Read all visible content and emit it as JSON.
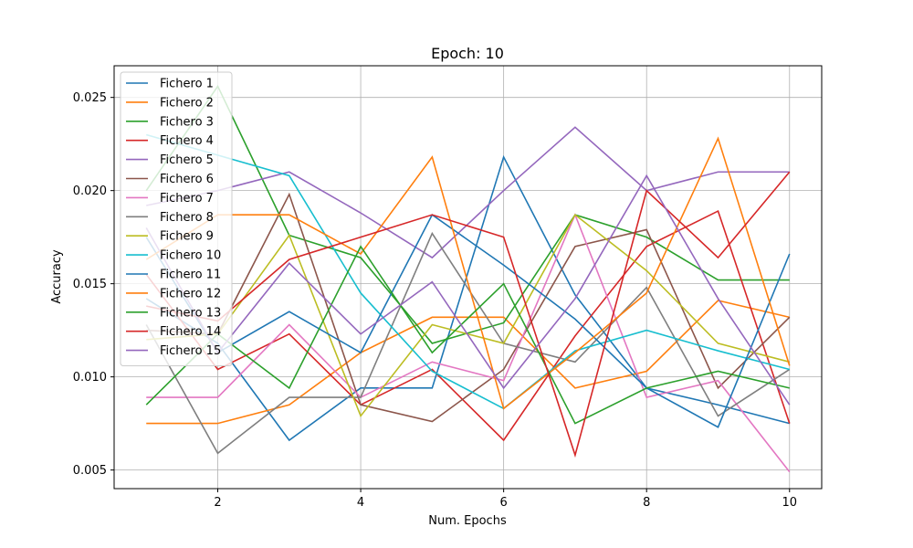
{
  "chart_data": {
    "type": "line",
    "title": "Epoch: 10",
    "xlabel": "Num. Epochs",
    "ylabel": "Accuracy",
    "xlim": [
      0.55,
      10.45
    ],
    "ylim": [
      0.004,
      0.0267
    ],
    "xticks": [
      2,
      4,
      6,
      8,
      10
    ],
    "yticks": [
      0.005,
      0.01,
      0.015,
      0.02,
      0.025
    ],
    "ytick_labels": [
      "0.005",
      "0.010",
      "0.015",
      "0.020",
      "0.025"
    ],
    "grid": true,
    "legend_position": "top-left",
    "x": [
      1,
      2,
      3,
      4,
      5,
      6,
      7,
      8,
      9,
      10
    ],
    "series": [
      {
        "name": "Fichero 1",
        "color": "#1f77b4",
        "values": [
          0.0142,
          0.0118,
          0.0066,
          0.0094,
          0.0094,
          0.0218,
          0.0144,
          0.0094,
          0.0085,
          0.0075
        ]
      },
      {
        "name": "Fichero 2",
        "color": "#ff7f0e",
        "values": [
          0.0075,
          0.0075,
          0.0085,
          0.0113,
          0.0132,
          0.0132,
          0.0094,
          0.0103,
          0.0141,
          0.0132
        ]
      },
      {
        "name": "Fichero 3",
        "color": "#2ca02c",
        "values": [
          0.02,
          0.0256,
          0.0176,
          0.0164,
          0.0118,
          0.0129,
          0.0187,
          0.0175,
          0.0152,
          0.0152
        ]
      },
      {
        "name": "Fichero 4",
        "color": "#d62728",
        "values": [
          0.0155,
          0.0104,
          0.0123,
          0.0085,
          0.0104,
          0.0066,
          0.0122,
          0.017,
          0.0189,
          0.0075
        ]
      },
      {
        "name": "Fichero 5",
        "color": "#9467bd",
        "values": [
          0.0192,
          0.02,
          0.021,
          0.0188,
          0.0164,
          0.02,
          0.0234,
          0.02,
          0.021,
          0.021
        ]
      },
      {
        "name": "Fichero 6",
        "color": "#8c564b",
        "values": [
          0.0125,
          0.0123,
          0.0198,
          0.0085,
          0.0076,
          0.0104,
          0.017,
          0.0179,
          0.0094,
          0.0132
        ]
      },
      {
        "name": "Fichero 7",
        "color": "#e377c2",
        "values": [
          0.0089,
          0.0089,
          0.0128,
          0.0089,
          0.0108,
          0.0098,
          0.0187,
          0.0089,
          0.0098,
          0.0049
        ]
      },
      {
        "name": "Fichero 8",
        "color": "#7f7f7f",
        "values": [
          0.0128,
          0.0059,
          0.0089,
          0.0089,
          0.0177,
          0.0118,
          0.0108,
          0.0148,
          0.0079,
          0.0104
        ]
      },
      {
        "name": "Fichero 9",
        "color": "#bcbd22",
        "values": [
          0.012,
          0.0123,
          0.0176,
          0.0079,
          0.0128,
          0.0118,
          0.0187,
          0.0157,
          0.0118,
          0.0108
        ]
      },
      {
        "name": "Fichero 10",
        "color": "#17becf",
        "values": [
          0.023,
          0.0219,
          0.0208,
          0.0145,
          0.0103,
          0.0083,
          0.0114,
          0.0125,
          0.0114,
          0.0104
        ]
      },
      {
        "name": "Fichero 11",
        "color": "#1f77b4",
        "values": [
          0.0175,
          0.0113,
          0.0135,
          0.0113,
          0.0187,
          0.016,
          0.0131,
          0.0094,
          0.0073,
          0.0166
        ]
      },
      {
        "name": "Fichero 12",
        "color": "#ff7f0e",
        "values": [
          0.0163,
          0.0187,
          0.0187,
          0.0166,
          0.0218,
          0.0083,
          0.0113,
          0.0145,
          0.0228,
          0.0106
        ]
      },
      {
        "name": "Fichero 13",
        "color": "#2ca02c",
        "values": [
          0.0085,
          0.0123,
          0.0094,
          0.017,
          0.0113,
          0.015,
          0.0075,
          0.0094,
          0.0103,
          0.0094
        ]
      },
      {
        "name": "Fichero 14",
        "color": "#d62728",
        "values": [
          0.0138,
          0.013,
          0.0163,
          0.0175,
          0.0187,
          0.0175,
          0.0058,
          0.02,
          0.0164,
          0.021
        ]
      },
      {
        "name": "Fichero 15",
        "color": "#9467bd",
        "values": [
          0.018,
          0.0113,
          0.0161,
          0.0123,
          0.0151,
          0.0094,
          0.0142,
          0.0208,
          0.0142,
          0.0085
        ]
      }
    ]
  }
}
